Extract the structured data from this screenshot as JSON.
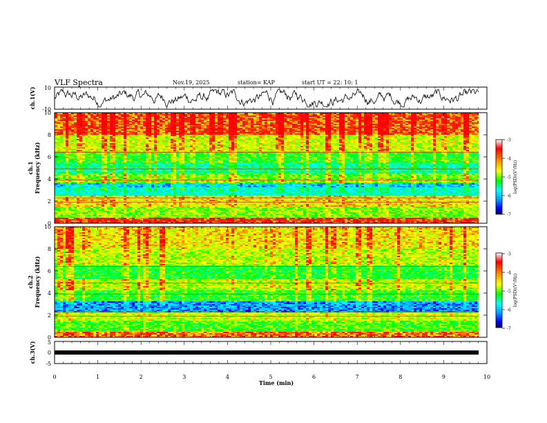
{
  "header": {
    "title": "VLF Spectra",
    "date": "Nov.19, 2025",
    "station": "station= KAP",
    "start": "start  UT  =   22: 10: 1"
  },
  "colors": {
    "spectrum": [
      "#0000a0",
      "#0000ff",
      "#00a0ff",
      "#00ffff",
      "#00ff80",
      "#00ff00",
      "#80ff00",
      "#ffff00",
      "#ffa000",
      "#ff4000",
      "#ff0000",
      "#ffffff"
    ],
    "trace": "#000000"
  },
  "chart_data": [
    {
      "type": "line",
      "name": "ch1-waveform",
      "ylabel": "ch.1(V)",
      "ylim": [
        -10,
        10
      ],
      "yticks": [
        "10",
        "-10"
      ],
      "xlim": [
        0,
        10
      ],
      "description_values": "noise-like waveform oscillating mostly between about -8 and +8 V",
      "amplitude": 8
    },
    {
      "type": "heatmap",
      "name": "ch1-spectrogram",
      "ylabel_top": "ch.1",
      "ylabel": "Frequency (kHz)",
      "ylim": [
        0,
        10
      ],
      "yticks": [
        "0",
        "2",
        "4",
        "6",
        "8",
        "10"
      ],
      "xlim": [
        0,
        9.8
      ],
      "colorbar": {
        "label": "log(PSD)(V²/Hz)",
        "range": [
          -7,
          -3
        ],
        "ticks": [
          "-3",
          "-4",
          "-5",
          "-6",
          "-7"
        ]
      },
      "bands": [
        {
          "freq": [
            0,
            0.5
          ],
          "level": -3.4
        },
        {
          "freq": [
            0.5,
            1.5
          ],
          "level": -4.5
        },
        {
          "freq": [
            1.5,
            2.5
          ],
          "level": -4.0
        },
        {
          "freq": [
            2.5,
            3.2
          ],
          "level": -5.5
        },
        {
          "freq": [
            3.2,
            3.6
          ],
          "level": -6.0
        },
        {
          "freq": [
            3.6,
            4.5
          ],
          "level": -4.6
        },
        {
          "freq": [
            4.5,
            5.5
          ],
          "level": -5.3
        },
        {
          "freq": [
            5.5,
            6.5
          ],
          "level": -4.8
        },
        {
          "freq": [
            6.5,
            8.0
          ],
          "level": -4.2
        },
        {
          "freq": [
            8.0,
            10.0
          ],
          "level": -3.5
        }
      ]
    },
    {
      "type": "heatmap",
      "name": "ch2-spectrogram",
      "ylabel_top": "ch.2",
      "ylabel": "Frequency (kHz)",
      "ylim": [
        0,
        10
      ],
      "yticks": [
        "0",
        "2",
        "4",
        "6",
        "8",
        "10"
      ],
      "xlim": [
        0,
        9.8
      ],
      "colorbar": {
        "label": "log(PSD)(V²/Hz)",
        "range": [
          -7,
          -3
        ],
        "ticks": [
          "-3",
          "-4",
          "-5",
          "-6",
          "-7"
        ]
      },
      "bands": [
        {
          "freq": [
            0,
            0.5
          ],
          "level": -3.6
        },
        {
          "freq": [
            0.5,
            1.5
          ],
          "level": -4.7
        },
        {
          "freq": [
            1.5,
            2.2
          ],
          "level": -4.2
        },
        {
          "freq": [
            2.2,
            3.2
          ],
          "level": -6.2
        },
        {
          "freq": [
            3.2,
            4.2
          ],
          "level": -4.8
        },
        {
          "freq": [
            4.2,
            5.2
          ],
          "level": -4.3
        },
        {
          "freq": [
            5.2,
            6.5
          ],
          "level": -4.9
        },
        {
          "freq": [
            6.5,
            8.0
          ],
          "level": -4.3
        },
        {
          "freq": [
            8.0,
            10.0
          ],
          "level": -4.0
        }
      ]
    },
    {
      "type": "line",
      "name": "ch3-waveform",
      "ylabel": "ch.3(V)",
      "ylim": [
        -5,
        5
      ],
      "yticks": [
        "5",
        "0",
        "-5"
      ],
      "xlim": [
        0,
        10
      ],
      "level": 0
    }
  ],
  "xaxis": {
    "label": "Time (min)",
    "ticks": [
      "0",
      "1",
      "2",
      "3",
      "4",
      "5",
      "6",
      "7",
      "8",
      "9",
      "10"
    ]
  }
}
